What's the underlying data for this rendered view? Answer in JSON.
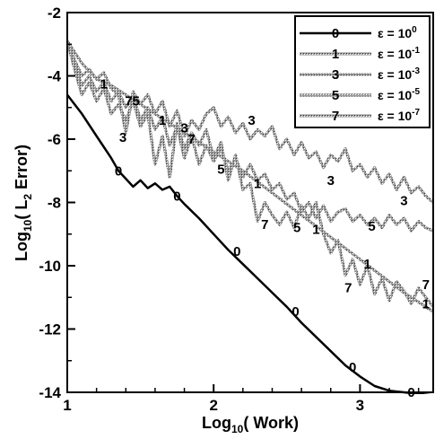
{
  "chart_data": {
    "type": "line",
    "title": "",
    "xlabel": "Log10( Work)",
    "xlabel_parts": [
      "Log",
      "10",
      "( Work)"
    ],
    "ylabel": "Log10( L2 Error)",
    "ylabel_parts": [
      "Log",
      "10",
      "( L",
      "2",
      " Error)"
    ],
    "xlim": [
      1,
      3.5
    ],
    "ylim": [
      -14,
      -2
    ],
    "xticks": [
      1,
      2,
      3
    ],
    "yticks": [
      -14,
      -12,
      -10,
      -8,
      -6,
      -4,
      -2
    ],
    "x_tick_labels": [
      "1",
      "2",
      "3"
    ],
    "y_tick_labels": [
      "-14",
      "-12",
      "-10",
      "-8",
      "-6",
      "-4",
      "-2"
    ],
    "grid": false,
    "legend_position": "top-right",
    "series": [
      {
        "name": "ε = 10^0",
        "legend_base": "ε = 10",
        "legend_exp": "0",
        "marker": "0",
        "style": "solid",
        "color": "#000000",
        "x": [
          1.0,
          1.1,
          1.2,
          1.3,
          1.35,
          1.4,
          1.45,
          1.5,
          1.55,
          1.6,
          1.65,
          1.7,
          1.75,
          1.8,
          1.9,
          2.0,
          2.1,
          2.2,
          2.3,
          2.4,
          2.5,
          2.6,
          2.7,
          2.8,
          2.9,
          3.0,
          3.1,
          3.2,
          3.3,
          3.4,
          3.5
        ],
        "y": [
          -4.6,
          -5.2,
          -5.9,
          -6.6,
          -7.0,
          -7.25,
          -7.5,
          -7.3,
          -7.55,
          -7.4,
          -7.6,
          -7.5,
          -7.8,
          -8.05,
          -8.5,
          -9.0,
          -9.5,
          -9.95,
          -10.4,
          -10.85,
          -11.3,
          -11.8,
          -12.25,
          -12.7,
          -13.15,
          -13.5,
          -13.8,
          -13.95,
          -14.0,
          -14.05,
          -14.1
        ]
      },
      {
        "name": "ε = 10^-1",
        "legend_base": "ε = 10",
        "legend_exp": "-1",
        "marker": "1",
        "style": "hatched",
        "color": "#8a8a8a",
        "x": [
          1.0,
          1.1,
          1.2,
          1.3,
          1.4,
          1.5,
          1.6,
          1.7,
          1.8,
          1.9,
          2.0,
          2.1,
          2.2,
          2.3,
          2.4,
          2.5,
          2.6,
          2.7,
          2.8,
          2.9,
          3.0,
          3.1,
          3.2,
          3.3,
          3.4,
          3.5
        ],
        "y": [
          -2.9,
          -3.6,
          -4.1,
          -4.3,
          -4.6,
          -4.9,
          -5.2,
          -5.5,
          -5.8,
          -6.1,
          -6.4,
          -6.7,
          -7.0,
          -7.35,
          -7.7,
          -8.05,
          -8.4,
          -8.75,
          -9.1,
          -9.45,
          -9.8,
          -10.15,
          -10.5,
          -10.85,
          -11.15,
          -11.45
        ]
      },
      {
        "name": "ε = 10^-3",
        "legend_base": "ε = 10",
        "legend_exp": "-3",
        "marker": "3",
        "style": "hatched",
        "color": "#8a8a8a",
        "x": [
          1.0,
          1.05,
          1.1,
          1.15,
          1.2,
          1.25,
          1.3,
          1.35,
          1.4,
          1.45,
          1.5,
          1.55,
          1.6,
          1.65,
          1.7,
          1.75,
          1.8,
          1.85,
          1.9,
          1.95,
          2.0,
          2.05,
          2.1,
          2.15,
          2.2,
          2.25,
          2.3,
          2.35,
          2.4,
          2.45,
          2.5,
          2.55,
          2.6,
          2.65,
          2.7,
          2.75,
          2.8,
          2.85,
          2.9,
          2.95,
          3.0,
          3.05,
          3.1,
          3.15,
          3.2,
          3.25,
          3.3,
          3.35,
          3.4,
          3.45,
          3.5
        ],
        "y": [
          -2.9,
          -3.5,
          -4.0,
          -3.8,
          -4.1,
          -3.9,
          -4.4,
          -4.6,
          -5.8,
          -4.5,
          -4.9,
          -4.6,
          -5.2,
          -4.8,
          -5.6,
          -5.1,
          -5.9,
          -5.4,
          -5.7,
          -5.2,
          -5.0,
          -5.6,
          -5.3,
          -5.8,
          -5.5,
          -6.0,
          -5.7,
          -5.9,
          -5.6,
          -6.3,
          -6.0,
          -6.5,
          -6.1,
          -6.6,
          -6.4,
          -6.9,
          -6.5,
          -6.7,
          -6.3,
          -7.0,
          -6.8,
          -7.2,
          -6.9,
          -7.4,
          -7.1,
          -7.6,
          -7.2,
          -7.7,
          -7.5,
          -7.8,
          -8.0
        ]
      },
      {
        "name": "ε = 10^-5",
        "legend_base": "ε = 10",
        "legend_exp": "-5",
        "marker": "5",
        "style": "hatched",
        "color": "#8a8a8a",
        "x": [
          1.0,
          1.05,
          1.1,
          1.15,
          1.2,
          1.25,
          1.3,
          1.35,
          1.4,
          1.45,
          1.5,
          1.55,
          1.6,
          1.65,
          1.7,
          1.75,
          1.8,
          1.85,
          1.9,
          1.95,
          2.0,
          2.05,
          2.1,
          2.15,
          2.2,
          2.25,
          2.3,
          2.35,
          2.4,
          2.45,
          2.5,
          2.55,
          2.6,
          2.65,
          2.7,
          2.75,
          2.8,
          2.85,
          2.9,
          2.95,
          3.0,
          3.05,
          3.1,
          3.15,
          3.2,
          3.25,
          3.3,
          3.35,
          3.4,
          3.45,
          3.5
        ],
        "y": [
          -2.9,
          -3.6,
          -4.3,
          -4.0,
          -4.5,
          -4.2,
          -4.8,
          -4.5,
          -5.0,
          -4.6,
          -5.4,
          -5.0,
          -5.7,
          -5.3,
          -6.2,
          -5.6,
          -6.6,
          -5.9,
          -6.8,
          -6.2,
          -6.7,
          -6.3,
          -7.0,
          -6.6,
          -7.2,
          -6.8,
          -7.3,
          -7.1,
          -7.6,
          -7.4,
          -7.9,
          -7.7,
          -8.3,
          -8.0,
          -8.5,
          -8.1,
          -8.6,
          -8.3,
          -8.2,
          -8.6,
          -8.4,
          -8.7,
          -8.5,
          -8.8,
          -8.4,
          -8.7,
          -8.5,
          -8.9,
          -8.6,
          -8.8,
          -8.9
        ]
      },
      {
        "name": "ε = 10^-7",
        "legend_base": "ε = 10",
        "legend_exp": "-7",
        "marker": "7",
        "style": "hatched",
        "color": "#8a8a8a",
        "x": [
          1.0,
          1.05,
          1.1,
          1.15,
          1.2,
          1.25,
          1.3,
          1.35,
          1.4,
          1.45,
          1.5,
          1.55,
          1.6,
          1.65,
          1.7,
          1.75,
          1.8,
          1.85,
          1.9,
          1.95,
          2.0,
          2.05,
          2.1,
          2.15,
          2.2,
          2.25,
          2.3,
          2.35,
          2.4,
          2.45,
          2.5,
          2.55,
          2.6,
          2.65,
          2.7,
          2.75,
          2.8,
          2.85,
          2.9,
          2.95,
          3.0,
          3.05,
          3.1,
          3.15,
          3.2,
          3.25,
          3.3,
          3.35,
          3.4,
          3.45,
          3.5
        ],
        "y": [
          -2.9,
          -3.8,
          -4.6,
          -4.2,
          -4.8,
          -4.4,
          -5.2,
          -4.9,
          -5.4,
          -4.8,
          -5.6,
          -5.2,
          -6.8,
          -5.9,
          -7.2,
          -5.5,
          -6.3,
          -5.8,
          -6.2,
          -5.7,
          -6.6,
          -6.1,
          -7.3,
          -6.5,
          -7.6,
          -7.4,
          -8.6,
          -8.0,
          -8.4,
          -8.7,
          -8.3,
          -8.8,
          -8.1,
          -8.5,
          -8.0,
          -9.0,
          -9.6,
          -9.2,
          -10.3,
          -9.8,
          -10.6,
          -10.0,
          -10.9,
          -10.4,
          -11.1,
          -10.5,
          -10.8,
          -11.2,
          -10.7,
          -11.0,
          -11.3
        ]
      }
    ],
    "marker_labels": [
      {
        "series": 0,
        "text": "0",
        "x": 1.35,
        "y": -7.0
      },
      {
        "series": 0,
        "text": "0",
        "x": 1.75,
        "y": -7.8
      },
      {
        "series": 0,
        "text": "0",
        "x": 2.16,
        "y": -9.55
      },
      {
        "series": 0,
        "text": "0",
        "x": 2.56,
        "y": -11.45
      },
      {
        "series": 0,
        "text": "0",
        "x": 2.95,
        "y": -13.2
      },
      {
        "series": 0,
        "text": "0",
        "x": 3.35,
        "y": -14.0
      },
      {
        "series": 1,
        "text": "1",
        "x": 1.25,
        "y": -4.25
      },
      {
        "series": 1,
        "text": "1",
        "x": 1.65,
        "y": -5.4
      },
      {
        "series": 1,
        "text": "1",
        "x": 2.3,
        "y": -7.4
      },
      {
        "series": 1,
        "text": "1",
        "x": 2.7,
        "y": -8.85
      },
      {
        "series": 1,
        "text": "1",
        "x": 3.05,
        "y": -9.95
      },
      {
        "series": 1,
        "text": "1",
        "x": 3.45,
        "y": -11.2
      },
      {
        "series": 2,
        "text": "3",
        "x": 1.38,
        "y": -5.95
      },
      {
        "series": 2,
        "text": "3",
        "x": 1.8,
        "y": -5.65
      },
      {
        "series": 2,
        "text": "3",
        "x": 2.26,
        "y": -5.4
      },
      {
        "series": 2,
        "text": "3",
        "x": 2.8,
        "y": -7.3
      },
      {
        "series": 2,
        "text": "3",
        "x": 3.3,
        "y": -7.95
      },
      {
        "series": 3,
        "text": "5",
        "x": 1.47,
        "y": -4.8
      },
      {
        "series": 3,
        "text": "5",
        "x": 2.05,
        "y": -6.95
      },
      {
        "series": 3,
        "text": "5",
        "x": 2.57,
        "y": -8.8
      },
      {
        "series": 3,
        "text": "5",
        "x": 3.08,
        "y": -8.75
      },
      {
        "series": 4,
        "text": "7",
        "x": 1.42,
        "y": -4.8
      },
      {
        "series": 4,
        "text": "7",
        "x": 1.85,
        "y": -6.0
      },
      {
        "series": 4,
        "text": "7",
        "x": 2.35,
        "y": -8.7
      },
      {
        "series": 4,
        "text": "7",
        "x": 2.92,
        "y": -10.7
      },
      {
        "series": 4,
        "text": "7",
        "x": 3.45,
        "y": -10.6
      }
    ]
  }
}
